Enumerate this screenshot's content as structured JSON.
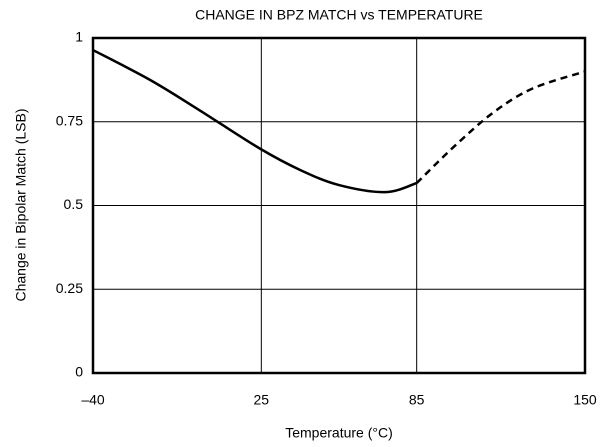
{
  "chart_data": {
    "type": "line",
    "title": "CHANGE IN BPZ MATCH vs TEMPERATURE",
    "x_label": "Temperature (°C)",
    "y_label": "Change in Bipolar Match (LSB)",
    "series": [
      {
        "color": "#000000",
        "dash": false,
        "x": [
          -40,
          -18,
          1,
          24,
          40,
          55,
          73,
          85
        ],
        "values": [
          0.964,
          0.875,
          0.785,
          0.672,
          0.606,
          0.561,
          0.54,
          0.567
        ]
      },
      {
        "color": "#000000",
        "dash": true,
        "x": [
          85,
          100,
          115,
          130,
          150
        ],
        "values": [
          0.567,
          0.68,
          0.78,
          0.85,
          0.9
        ]
      }
    ],
    "xlim": [
      -40,
      150
    ],
    "xticks": [
      {
        "value": -40,
        "label": "–40"
      },
      25,
      85,
      150
    ],
    "ylim": [
      0,
      1
    ],
    "yticks": [
      0,
      0.25,
      0.5,
      0.75,
      1
    ],
    "grid": true
  }
}
